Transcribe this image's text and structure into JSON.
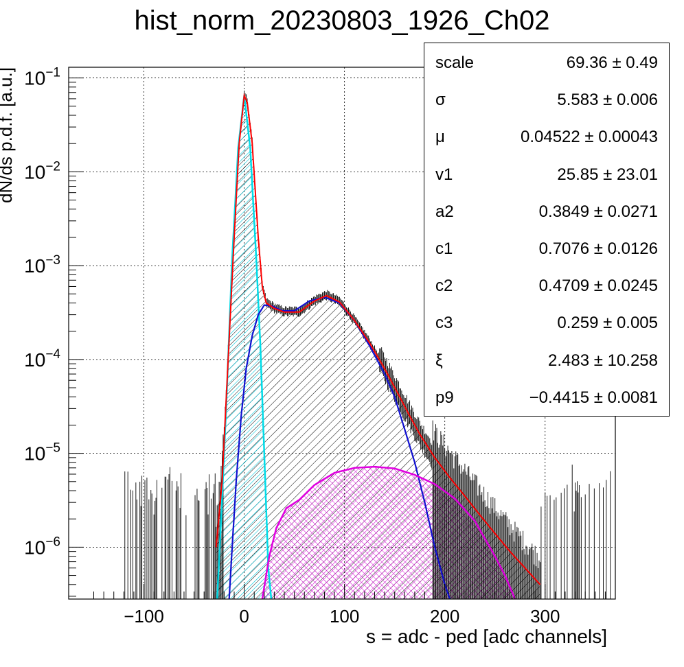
{
  "chart_data": {
    "type": "histogram",
    "title": "hist_norm_20230803_1926_Ch02",
    "xlabel": "s = adc - ped [adc channels]",
    "ylabel": "dN/ds p.d.f. [a.u.]",
    "xlim": [
      -175,
      370
    ],
    "ylim": [
      2.8e-07,
      0.13
    ],
    "yscale": "log",
    "grid": true,
    "x_ticks": [
      {
        "value": -100,
        "label": "−100"
      },
      {
        "value": 0,
        "label": "0"
      },
      {
        "value": 100,
        "label": "100"
      },
      {
        "value": 200,
        "label": "200"
      },
      {
        "value": 300,
        "label": "300"
      }
    ],
    "y_ticks": [
      {
        "value": 0.1,
        "base": "10",
        "exp": "−1"
      },
      {
        "value": 0.01,
        "base": "10",
        "exp": "−2"
      },
      {
        "value": 0.001,
        "base": "10",
        "exp": "−3"
      },
      {
        "value": 0.0001,
        "base": "10",
        "exp": "−4"
      },
      {
        "value": 1e-05,
        "base": "10",
        "exp": "−5"
      },
      {
        "value": 1e-06,
        "base": "10",
        "exp": "−6"
      }
    ],
    "data_envelope": {
      "x": [
        -28,
        -22,
        -16,
        -10,
        -5,
        0,
        3,
        8,
        14,
        18,
        22,
        30,
        40,
        55,
        70,
        82,
        95,
        110,
        125,
        140,
        155,
        165,
        175,
        190,
        205,
        220,
        235,
        250,
        265,
        280,
        295
      ],
      "y": [
        1e-06,
        5e-06,
        0.0001,
        0.002,
        0.02,
        0.065,
        0.055,
        0.02,
        0.002,
        0.0006,
        0.0004,
        0.00035,
        0.00032,
        0.00032,
        0.00042,
        0.00048,
        0.00041,
        0.00026,
        0.00015,
        8e-05,
        4e-05,
        2.5e-05,
        1.6e-05,
        9e-06,
        5.5e-06,
        3.5e-06,
        2.2e-06,
        1.4e-06,
        9e-07,
        6e-07,
        4e-07
      ]
    },
    "series": [
      {
        "color": "#ff0000",
        "style": "line",
        "x": [
          -28,
          -22,
          -16,
          -10,
          -5,
          0,
          3,
          8,
          14,
          18,
          22,
          30,
          40,
          55,
          70,
          82,
          95,
          110,
          125,
          140,
          155,
          165,
          175,
          190,
          205,
          220,
          235,
          250,
          265,
          280,
          295
        ],
        "y": [
          1e-06,
          5e-06,
          0.0001,
          0.002,
          0.02,
          0.065,
          0.055,
          0.02,
          0.002,
          0.0006,
          0.0004,
          0.00035,
          0.00032,
          0.00032,
          0.00042,
          0.00048,
          0.00041,
          0.00026,
          0.00015,
          8e-05,
          4e-05,
          2.5e-05,
          1.6e-05,
          9e-06,
          5.5e-06,
          3.5e-06,
          2.2e-06,
          1.4e-06,
          9e-07,
          6e-07,
          4e-07
        ]
      },
      {
        "color": "#00e0f0",
        "style": "hatched",
        "x": [
          -27,
          -23,
          -18,
          -12,
          -6,
          0,
          6,
          12,
          16,
          20,
          24,
          27
        ],
        "y": [
          2.8e-07,
          2e-06,
          3e-05,
          0.0012,
          0.018,
          0.065,
          0.018,
          0.0012,
          0.00015,
          1e-05,
          6e-07,
          2.8e-07
        ]
      },
      {
        "color": "#0000cc",
        "style": "line",
        "x": [
          -15,
          -12,
          -8,
          -3,
          2,
          8,
          14,
          20,
          28,
          38,
          50,
          65,
          80,
          95,
          110,
          125,
          140,
          150,
          160,
          170,
          180,
          190,
          200,
          205
        ],
        "y": [
          2.8e-07,
          1e-06,
          5e-06,
          2.5e-05,
          8e-05,
          0.00018,
          0.0003,
          0.00038,
          0.00037,
          0.00033,
          0.00033,
          0.00042,
          0.00046,
          0.0004,
          0.00026,
          0.00014,
          7e-05,
          4e-05,
          1.8e-05,
          8e-06,
          3e-06,
          1e-06,
          4e-07,
          2.8e-07
        ]
      },
      {
        "color": "#e000e0",
        "style": "hatched",
        "x": [
          18,
          25,
          32,
          42,
          55,
          70,
          90,
          110,
          130,
          150,
          170,
          190,
          210,
          230,
          250,
          260,
          270
        ],
        "y": [
          2.8e-07,
          8e-07,
          1.6e-06,
          2.6e-06,
          3.2e-06,
          4.6e-06,
          6.2e-06,
          7e-06,
          7.2e-06,
          6.9e-06,
          5.9e-06,
          4.7e-06,
          3.3e-06,
          1.9e-06,
          8e-07,
          5e-07,
          2.8e-07
        ]
      }
    ],
    "stats": [
      {
        "name": "scale",
        "value": "69.36 ± 0.49"
      },
      {
        "name": "σ",
        "value": "5.583 ± 0.006"
      },
      {
        "name": "μ",
        "value": "0.04522 ± 0.00043"
      },
      {
        "name": "v1",
        "value": "25.85 ± 23.01"
      },
      {
        "name": "a2",
        "value": "0.3849 ± 0.0271"
      },
      {
        "name": "c1",
        "value": "0.7076 ± 0.0126"
      },
      {
        "name": "c2",
        "value": "0.4709 ± 0.0245"
      },
      {
        "name": "c3",
        "value": "0.259 ± 0.005"
      },
      {
        "name": "ξ",
        "value": "2.483 ± 10.258"
      },
      {
        "name": "p9",
        "value": "−0.4415 ± 0.0081"
      }
    ]
  }
}
